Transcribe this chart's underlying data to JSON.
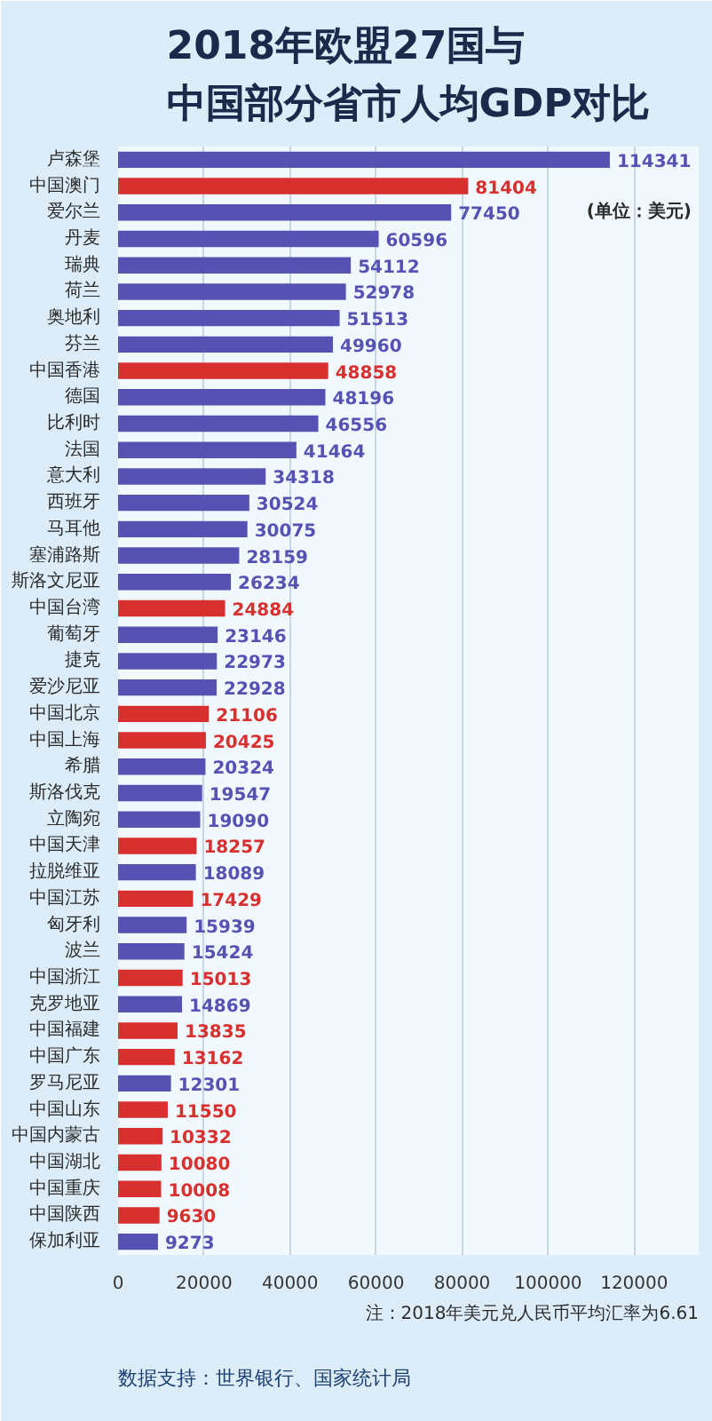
{
  "chart_data": {
    "type": "bar",
    "orientation": "horizontal",
    "title": "2018年欧盟27国与中国部分省市人均GDP对比",
    "categories": [
      "卢森堡",
      "中国澳门",
      "爱尔兰",
      "丹麦",
      "瑞典",
      "荷兰",
      "奥地利",
      "芬兰",
      "中国香港",
      "德国",
      "比利时",
      "法国",
      "意大利",
      "西班牙",
      "马耳他",
      "塞浦路斯",
      "斯洛文尼亚",
      "中国台湾",
      "葡萄牙",
      "捷克",
      "爱沙尼亚",
      "中国北京",
      "中国上海",
      "希腊",
      "斯洛伐克",
      "立陶宛",
      "中国天津",
      "拉脱维亚",
      "中国江苏",
      "匈牙利",
      "波兰",
      "中国浙江",
      "克罗地亚",
      "中国福建",
      "中国广东",
      "罗马尼亚",
      "中国山东",
      "中国内蒙古",
      "中国湖北",
      "中国重庆",
      "中国陕西",
      "保加利亚"
    ],
    "values": [
      114341,
      81404,
      77450,
      60596,
      54112,
      52978,
      51513,
      49960,
      48858,
      48196,
      46556,
      41464,
      34318,
      30524,
      30075,
      28159,
      26234,
      24884,
      23146,
      22973,
      22928,
      21106,
      20425,
      20324,
      19547,
      19090,
      18257,
      18089,
      17429,
      15939,
      15424,
      15013,
      14869,
      13835,
      13162,
      12301,
      11550,
      10332,
      10080,
      10008,
      9630,
      9273
    ],
    "colors": [
      "#5652b3",
      "#d8302e",
      "#5652b3",
      "#5652b3",
      "#5652b3",
      "#5652b3",
      "#5652b3",
      "#5652b3",
      "#d8302e",
      "#5652b3",
      "#5652b3",
      "#5652b3",
      "#5652b3",
      "#5652b3",
      "#5652b3",
      "#5652b3",
      "#5652b3",
      "#d8302e",
      "#5652b3",
      "#5652b3",
      "#5652b3",
      "#d8302e",
      "#d8302e",
      "#5652b3",
      "#5652b3",
      "#5652b3",
      "#d8302e",
      "#5652b3",
      "#d8302e",
      "#5652b3",
      "#5652b3",
      "#d8302e",
      "#5652b3",
      "#d8302e",
      "#d8302e",
      "#5652b3",
      "#d8302e",
      "#d8302e",
      "#d8302e",
      "#d8302e",
      "#d8302e",
      "#5652b3"
    ],
    "xlim": [
      0,
      135000
    ],
    "xticks": [
      0,
      20000,
      40000,
      60000,
      80000,
      100000,
      120000
    ],
    "grid": "x",
    "data_labels": true,
    "annotations": [
      "(单位：美元)",
      "注：2018年美元兑人民币平均汇率为6.61",
      "数据支持：世界银行、国家统计局"
    ]
  }
}
